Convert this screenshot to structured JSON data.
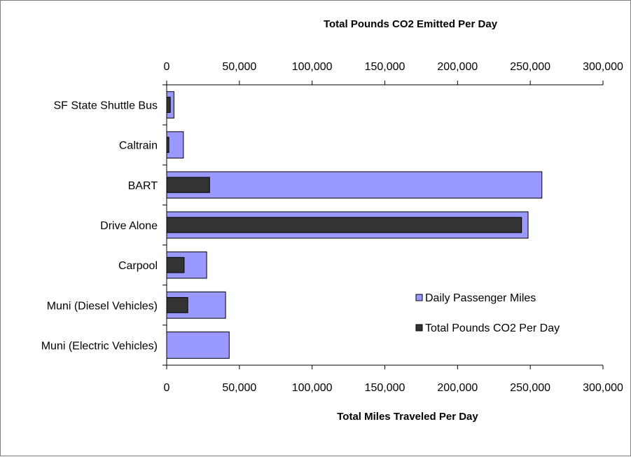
{
  "chart_data": {
    "type": "bar",
    "orientation": "horizontal",
    "categories": [
      "SF State Shuttle Bus",
      "Caltrain",
      "BART",
      "Drive Alone",
      "Carpool",
      "Muni (Diesel Vehicles)",
      "Muni (Electric Vehicles)"
    ],
    "series": [
      {
        "name": "Daily Passenger Miles",
        "color": "#9999ff",
        "axis": "bottom",
        "values": [
          5000,
          11500,
          258000,
          248500,
          27500,
          40500,
          43000
        ]
      },
      {
        "name": "Total Pounds CO2 Per Day",
        "color": "#333333",
        "axis": "top",
        "values": [
          2500,
          1500,
          29500,
          244000,
          12000,
          14500,
          0
        ]
      }
    ],
    "top_axis": {
      "title": "Total  Pounds CO2 Emitted Per Day",
      "range": [
        0,
        300000
      ],
      "ticks": [
        "0",
        "50,000",
        "100,000",
        "150,000",
        "200,000",
        "250,000",
        "300,000"
      ]
    },
    "bottom_axis": {
      "title": "Total Miles Traveled Per Day",
      "range": [
        0,
        300000
      ],
      "ticks": [
        "0",
        "50,000",
        "100,000",
        "150,000",
        "200,000",
        "250,000",
        "300,000"
      ]
    },
    "grid": false,
    "legend_position": "inside-right"
  }
}
